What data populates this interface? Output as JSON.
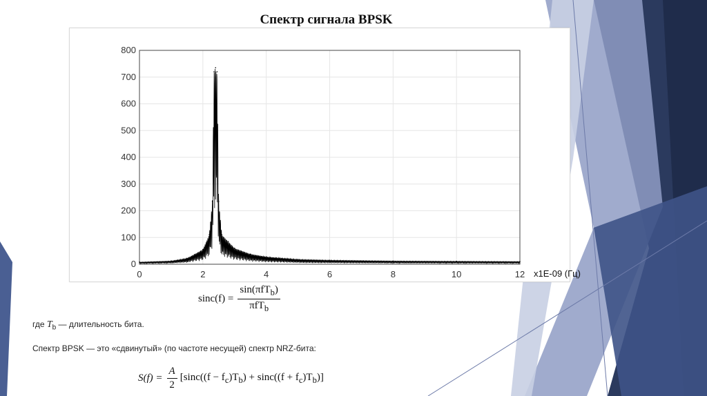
{
  "slide": {
    "title": "Спектр сигнала BPSK"
  },
  "chart_data": {
    "type": "line",
    "xlim": [
      0,
      12
    ],
    "ylim": [
      0,
      800
    ],
    "xticks": [
      0,
      2,
      4,
      6,
      8,
      10,
      12
    ],
    "yticks": [
      0,
      100,
      200,
      300,
      400,
      500,
      600,
      700,
      800
    ],
    "grid": true,
    "series": [
      {
        "x": [
          0,
          1.0,
          1.5,
          2.0,
          2.2,
          2.3,
          2.35,
          2.4,
          2.45,
          2.5,
          2.6,
          2.8,
          3.0,
          3.5,
          4.0,
          5.0,
          6.0,
          8.0,
          10.0,
          12.0
        ],
        "values": [
          8,
          12,
          22,
          55,
          110,
          235,
          720,
          735,
          720,
          235,
          110,
          85,
          60,
          38,
          28,
          18,
          15,
          12,
          11,
          10
        ]
      }
    ],
    "color": "#000000"
  },
  "unit_label": "x1E-09 (Гц)",
  "formulas": {
    "sinc_lhs": "sinc(f) =",
    "sinc_num": "sin(πfT",
    "sinc_num_sub": "b",
    "sinc_num_end": ")",
    "sinc_den": "πfT",
    "sinc_den_sub": "b",
    "note1_prefix": "где ",
    "note1_var": "T",
    "note1_sub": "b",
    "note1_suffix": " — длительность бита.",
    "note2": "Спектр BPSK — это «сдвинутый» (по частоте несущей) спектр NRZ-бита:",
    "sf_lhs": "S(f) =",
    "sf_num": "A",
    "sf_den": "2",
    "sf_rhs": "[sinc((f − f",
    "sf_c1": "c",
    "sf_mid": ")T",
    "sf_b1": "b",
    "sf_mid2": ") + sinc((f + f",
    "sf_c2": "c",
    "sf_mid3": ")T",
    "sf_b2": "b",
    "sf_end": ")]"
  },
  "colors": {
    "deco_dark": "#2b3a5e",
    "deco_mid": "#4a5f93",
    "deco_light": "#a7b2d3"
  }
}
